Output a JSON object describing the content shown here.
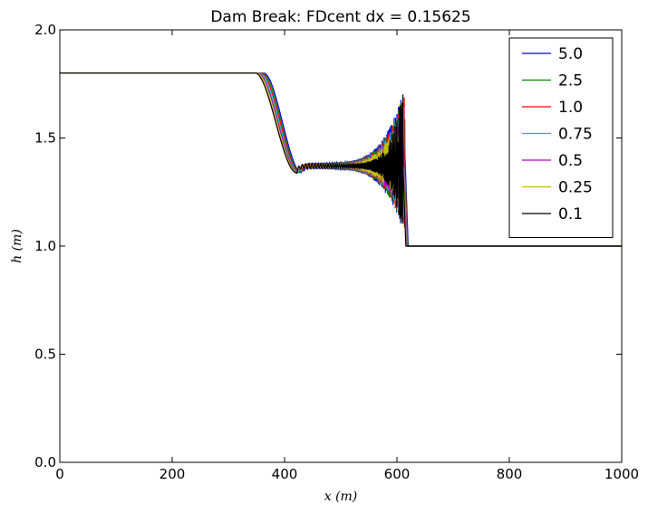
{
  "chart_data": {
    "type": "line",
    "title": "Dam Break: FDcent dx = 0.15625",
    "xlabel": "x (m)",
    "ylabel": "h (m)",
    "xlim": [
      0,
      1000
    ],
    "ylim": [
      0.0,
      2.0
    ],
    "xticks": [
      "0",
      "200",
      "400",
      "600",
      "800",
      "1000"
    ],
    "yticks": [
      "0.0",
      "0.5",
      "1.0",
      "1.5",
      "2.0"
    ],
    "grid": false,
    "legend_position": "top-right",
    "series": [
      {
        "name": "5.0",
        "color": "#0000ff"
      },
      {
        "name": "2.5",
        "color": "#008000"
      },
      {
        "name": "1.0",
        "color": "#ff0000"
      },
      {
        "name": "0.75",
        "color": "#00bfbf"
      },
      {
        "name": "0.5",
        "color": "#bf00bf"
      },
      {
        "name": "0.25",
        "color": "#bfbf00"
      },
      {
        "name": "0.1",
        "color": "#000000"
      }
    ],
    "profile": {
      "h_left": 1.8,
      "h_right": 1.0,
      "h_middle": 1.37,
      "drop_start_x": 350,
      "drop_end_x": 430,
      "dip_h": 1.34,
      "front_x": 615,
      "max_oscillation_peak_h": 1.74,
      "max_oscillation_trough_h": 1.05
    }
  }
}
